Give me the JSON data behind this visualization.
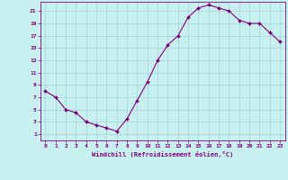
{
  "x": [
    0,
    1,
    2,
    3,
    4,
    5,
    6,
    7,
    8,
    9,
    10,
    11,
    12,
    13,
    14,
    15,
    16,
    17,
    18,
    19,
    20,
    21,
    22,
    23
  ],
  "y": [
    8,
    7,
    5,
    4.5,
    3,
    2.5,
    2,
    1.5,
    3.5,
    6.5,
    9.5,
    13,
    15.5,
    17,
    20,
    21.5,
    22,
    21.5,
    21,
    19.5,
    19,
    19,
    17.5,
    16
  ],
  "line_color": "#800080",
  "marker": "D",
  "marker_size": 2.0,
  "bg_color": "#c8f0f0",
  "grid_color": "#a8d8d8",
  "tick_color": "#800080",
  "label_color": "#800080",
  "xlabel": "Windchill (Refroidissement éolien,°C)",
  "yticks": [
    1,
    3,
    5,
    7,
    9,
    11,
    13,
    15,
    17,
    19,
    21
  ],
  "xticks": [
    0,
    1,
    2,
    3,
    4,
    5,
    6,
    7,
    8,
    9,
    10,
    11,
    12,
    13,
    14,
    15,
    16,
    17,
    18,
    19,
    20,
    21,
    22,
    23
  ],
  "ylim": [
    0,
    22.5
  ],
  "xlim": [
    -0.5,
    23.5
  ],
  "tick_fontsize": 4.5,
  "xlabel_fontsize": 5.0
}
